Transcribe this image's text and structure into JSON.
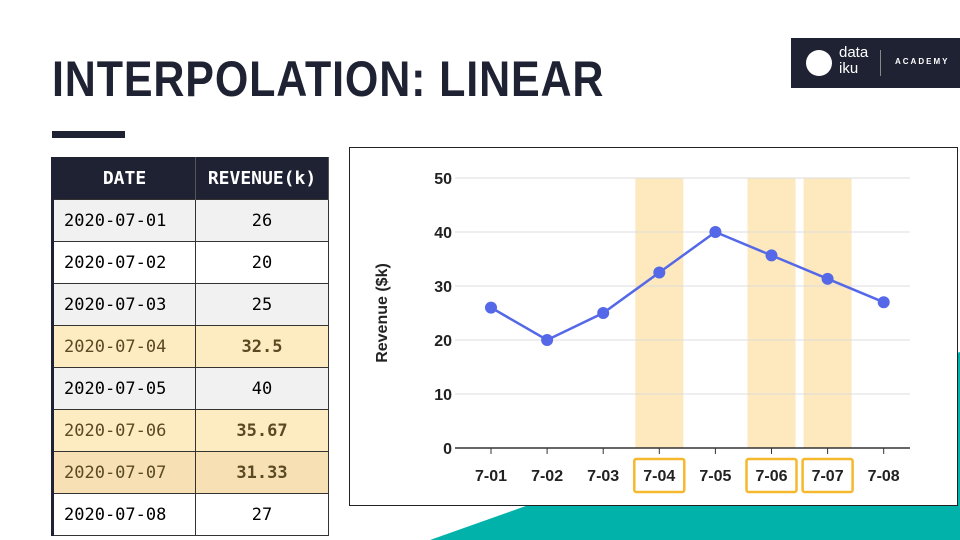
{
  "title": "INTERPOLATION: LINEAR",
  "logo": {
    "line1": "data",
    "line2": "iku",
    "sub": "ACADEMY"
  },
  "table": {
    "headers": [
      "DATE",
      "REVENUE(k)"
    ],
    "rows": [
      {
        "date": "2020-07-01",
        "revenue": "26",
        "interpolated": false
      },
      {
        "date": "2020-07-02",
        "revenue": "20",
        "interpolated": false
      },
      {
        "date": "2020-07-03",
        "revenue": "25",
        "interpolated": false
      },
      {
        "date": "2020-07-04",
        "revenue": "32.5",
        "interpolated": true
      },
      {
        "date": "2020-07-05",
        "revenue": "40",
        "interpolated": false
      },
      {
        "date": "2020-07-06",
        "revenue": "35.67",
        "interpolated": true
      },
      {
        "date": "2020-07-07",
        "revenue": "31.33",
        "interpolated": true
      },
      {
        "date": "2020-07-08",
        "revenue": "27",
        "interpolated": false
      }
    ]
  },
  "colors": {
    "navy": "#1e2233",
    "teal": "#00b2a9",
    "line": "#5468e8",
    "highlight": "#fde9bd",
    "highlight_border": "#f5b82e"
  },
  "chart_data": {
    "type": "line",
    "categories": [
      "7-01",
      "7-02",
      "7-03",
      "7-04",
      "7-05",
      "7-06",
      "7-07",
      "7-08"
    ],
    "values": [
      26,
      20,
      25,
      32.5,
      40,
      35.67,
      31.33,
      27
    ],
    "highlighted": [
      "7-04",
      "7-06",
      "7-07"
    ],
    "ylabel": "Revenue ($k)",
    "ylim": [
      0,
      50
    ],
    "yticks": [
      "0",
      "10",
      "20",
      "30",
      "40",
      "50"
    ],
    "grid": true
  }
}
